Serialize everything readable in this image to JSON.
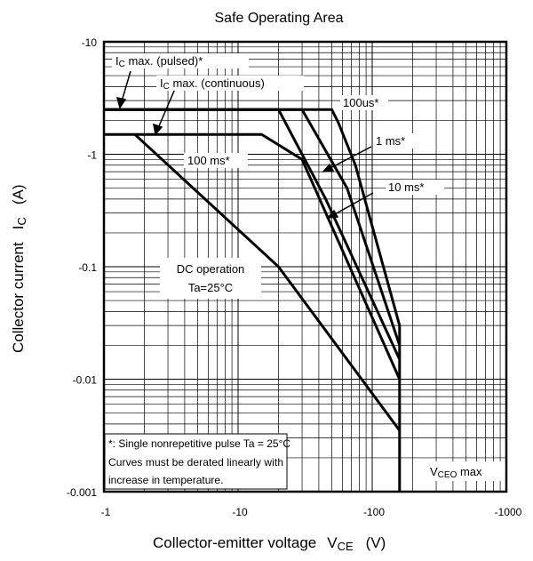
{
  "chart_data": {
    "type": "line",
    "title": "Safe Operating Area",
    "xlabel": "Collector-emitter voltage",
    "xlabel_symbol": "V",
    "xlabel_sub": "CE",
    "xlabel_unit": "(V)",
    "ylabel": "Collector current",
    "ylabel_symbol": "I",
    "ylabel_sub": "C",
    "ylabel_unit": "(A)",
    "x_scale": "log",
    "y_scale": "log",
    "xlim": [
      1,
      1000
    ],
    "ylim": [
      0.001,
      10
    ],
    "x_ticks": [
      {
        "v": 1,
        "label": "-1"
      },
      {
        "v": 10,
        "label": "-10"
      },
      {
        "v": 100,
        "label": "-100"
      },
      {
        "v": 1000,
        "label": "-1000"
      }
    ],
    "y_ticks": [
      {
        "v": 10,
        "label": "-10"
      },
      {
        "v": 1,
        "label": "-1"
      },
      {
        "v": 0.1,
        "label": "-0.1"
      },
      {
        "v": 0.01,
        "label": "-0.01"
      },
      {
        "v": 0.001,
        "label": "-0.001"
      }
    ],
    "grid": true,
    "series": [
      {
        "name": "100us*",
        "x": [
          1,
          50,
          56,
          75,
          160,
          160
        ],
        "y": [
          2.5,
          2.5,
          1.9,
          0.8,
          0.03,
          0.001
        ]
      },
      {
        "name": "1 ms*",
        "x": [
          1,
          30,
          65,
          160
        ],
        "y": [
          2.5,
          2.5,
          0.5,
          0.02
        ]
      },
      {
        "name": "10 ms*",
        "x": [
          1,
          20,
          45,
          160
        ],
        "y": [
          2.5,
          2.5,
          0.4,
          0.015
        ]
      },
      {
        "name": "100 ms*",
        "x": [
          1,
          15,
          30,
          160
        ],
        "y": [
          1.5,
          1.5,
          0.9,
          0.01
        ]
      },
      {
        "name": "DC operation",
        "x": [
          1.7,
          20,
          160
        ],
        "y": [
          1.5,
          0.1,
          0.0035
        ]
      }
    ],
    "annotations": {
      "pulsed": {
        "a": "I",
        "b": "C",
        "c": " max. (pulsed)*"
      },
      "continuous": {
        "a": "I",
        "b": "C",
        "c": " max. (continuous)"
      },
      "dc_line1": "DC operation",
      "dc_line2": "Ta=25°C",
      "note_line1": "*:  Single nonrepetitive pulse Ta = 25°C",
      "note_line2": "Curves must be derated linearly with",
      "note_line3": "increase in temperature.",
      "vceo_main": "V",
      "vceo_sub": "CEO",
      "vceo_rest": " max"
    }
  }
}
